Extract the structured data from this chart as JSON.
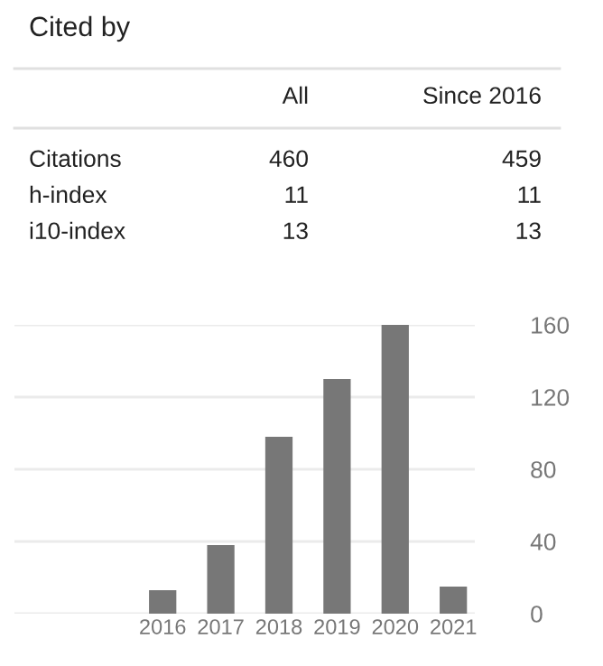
{
  "chart_data": [
    {
      "type": "other",
      "title": "Cited by",
      "categories": [
        "All",
        "Since 2016"
      ],
      "y_categories": [
        "Citations",
        "h-index",
        "i10-index"
      ],
      "annotations": [
        "460",
        "459",
        "11",
        "11",
        "13",
        "13"
      ]
    },
    {
      "type": "bar",
      "categories": [
        "2016",
        "2017",
        "2018",
        "2019",
        "2020",
        "2021"
      ],
      "values": [
        13,
        38,
        98,
        130,
        160,
        15
      ],
      "color": "#777777",
      "ylim": [
        0,
        160
      ],
      "yticks": [
        0,
        40,
        80,
        120,
        160
      ],
      "grid": "y"
    }
  ]
}
